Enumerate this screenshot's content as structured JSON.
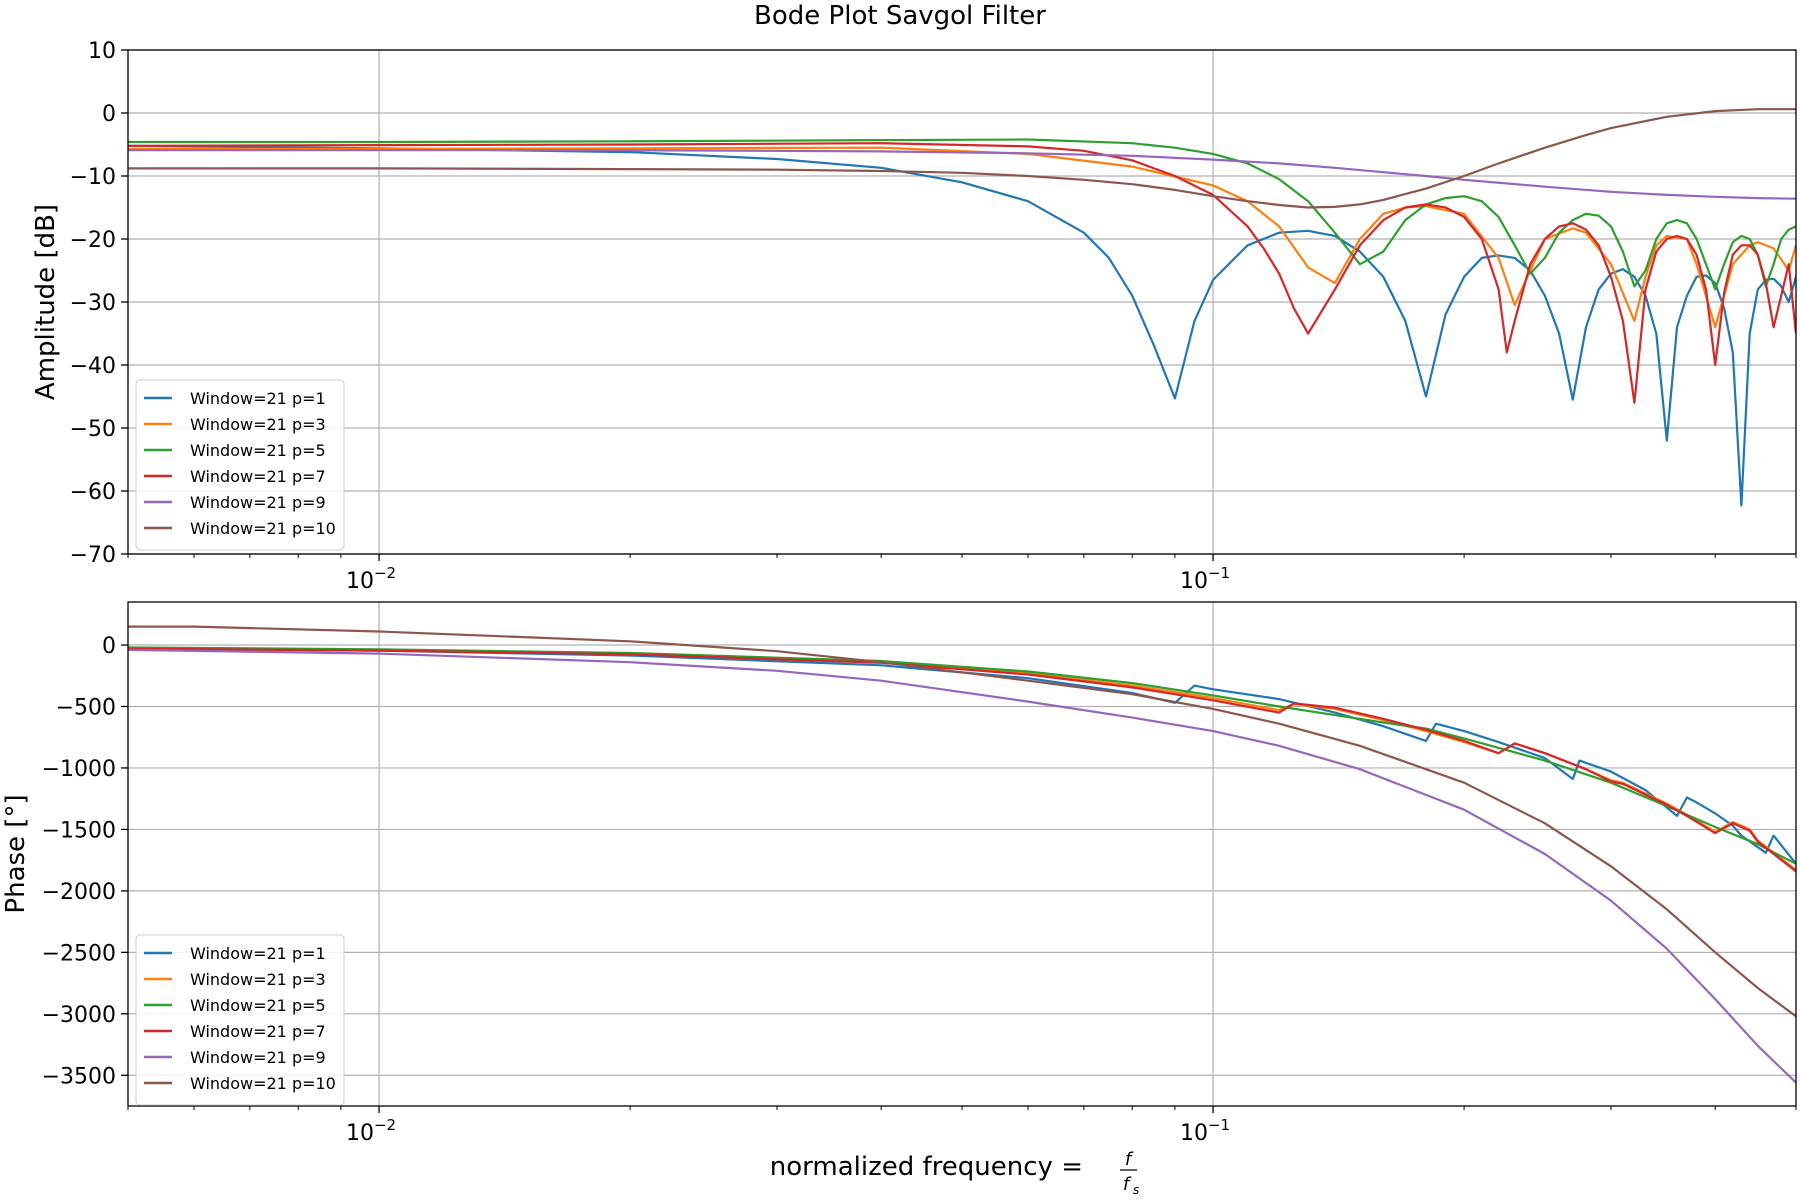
{
  "figure": {
    "title": "Bode Plot Savgol Filter",
    "xlabel_prefix": "normalized frequency = ",
    "xlabel_frac_num": "f",
    "xlabel_frac_den": "f",
    "xlabel_frac_den_sub": "s"
  },
  "chart_data": [
    {
      "type": "line",
      "title": "Bode Plot Savgol Filter",
      "xlabel": "",
      "ylabel": "Amplitude [dB]",
      "xscale": "log",
      "xlim": [
        0.005,
        0.5
      ],
      "ylim": [
        -70,
        10
      ],
      "xticks": [
        {
          "value": 0.01,
          "base": "10",
          "exp": "−2"
        },
        {
          "value": 0.1,
          "base": "10",
          "exp": "−1"
        }
      ],
      "yticks": [
        10,
        0,
        -10,
        -20,
        -30,
        -40,
        -50,
        -60,
        -70
      ],
      "ytick_labels": [
        "10",
        "0",
        "−10",
        "−20",
        "−30",
        "−40",
        "−50",
        "−60",
        "−70"
      ],
      "grid": true,
      "legend_position": "lower-left",
      "series": [
        {
          "name": "Window=21 p=1",
          "color": "#1f77b4",
          "x": [
            0.005,
            0.01,
            0.02,
            0.03,
            0.04,
            0.05,
            0.06,
            0.07,
            0.075,
            0.08,
            0.085,
            0.09,
            0.095,
            0.1,
            0.11,
            0.12,
            0.13,
            0.14,
            0.15,
            0.16,
            0.17,
            0.18,
            0.19,
            0.2,
            0.21,
            0.22,
            0.23,
            0.24,
            0.25,
            0.26,
            0.27,
            0.28,
            0.29,
            0.3,
            0.31,
            0.32,
            0.33,
            0.34,
            0.35,
            0.36,
            0.37,
            0.38,
            0.39,
            0.4,
            0.41,
            0.42,
            0.43,
            0.44,
            0.45,
            0.46,
            0.47,
            0.48,
            0.49,
            0.5
          ],
          "y": [
            -5.2,
            -5.6,
            -6.2,
            -7.3,
            -8.7,
            -11.0,
            -14.0,
            -19.0,
            -23.0,
            -29.0,
            -37.0,
            -45.3,
            -33.0,
            -26.5,
            -21.0,
            -19.0,
            -18.7,
            -19.5,
            -22.0,
            -26.0,
            -33.0,
            -45.0,
            -32.0,
            -26.0,
            -23.0,
            -22.6,
            -23.0,
            -25.0,
            -29.0,
            -35.0,
            -45.5,
            -34.0,
            -28.0,
            -25.5,
            -24.8,
            -26.0,
            -29.0,
            -35.0,
            -52.0,
            -34.0,
            -29.0,
            -26.0,
            -25.8,
            -27.0,
            -31.0,
            -38.0,
            -62.3,
            -35.0,
            -28.0,
            -26.5,
            -26.3,
            -27.5,
            -30.0,
            -26.0
          ]
        },
        {
          "name": "Window=21 p=3",
          "color": "#ff7f0e",
          "x": [
            0.005,
            0.01,
            0.02,
            0.04,
            0.06,
            0.08,
            0.1,
            0.11,
            0.12,
            0.13,
            0.14,
            0.15,
            0.16,
            0.17,
            0.18,
            0.2,
            0.22,
            0.23,
            0.24,
            0.25,
            0.27,
            0.28,
            0.3,
            0.32,
            0.33,
            0.34,
            0.35,
            0.37,
            0.38,
            0.4,
            0.42,
            0.44,
            0.45,
            0.47,
            0.49,
            0.5
          ],
          "y": [
            -5.7,
            -5.7,
            -5.6,
            -5.5,
            -6.5,
            -8.5,
            -11.5,
            -14.0,
            -18.0,
            -24.5,
            -27.0,
            -20.0,
            -16.0,
            -15.0,
            -14.8,
            -16.0,
            -23.0,
            -30.5,
            -25.0,
            -20.0,
            -18.3,
            -19.0,
            -24.0,
            -33.0,
            -26.0,
            -21.0,
            -19.5,
            -20.0,
            -24.0,
            -34.0,
            -24.0,
            -21.0,
            -20.5,
            -21.5,
            -25.0,
            -21.0
          ]
        },
        {
          "name": "Window=21 p=5",
          "color": "#2ca02c",
          "x": [
            0.005,
            0.01,
            0.02,
            0.04,
            0.06,
            0.08,
            0.09,
            0.1,
            0.11,
            0.12,
            0.13,
            0.14,
            0.15,
            0.16,
            0.17,
            0.18,
            0.19,
            0.2,
            0.21,
            0.22,
            0.23,
            0.24,
            0.25,
            0.26,
            0.27,
            0.28,
            0.29,
            0.3,
            0.31,
            0.32,
            0.33,
            0.34,
            0.35,
            0.36,
            0.37,
            0.38,
            0.39,
            0.4,
            0.41,
            0.42,
            0.43,
            0.44,
            0.45,
            0.46,
            0.47,
            0.48,
            0.49,
            0.5
          ],
          "y": [
            -4.6,
            -4.6,
            -4.5,
            -4.3,
            -4.2,
            -4.8,
            -5.5,
            -6.5,
            -8.0,
            -10.5,
            -14.0,
            -19.0,
            -24.0,
            -22.0,
            -17.0,
            -14.5,
            -13.5,
            -13.2,
            -14.0,
            -16.5,
            -21.0,
            -25.5,
            -23.0,
            -19.0,
            -17.0,
            -16.0,
            -16.3,
            -18.0,
            -22.0,
            -27.5,
            -25.0,
            -20.0,
            -17.5,
            -17.0,
            -17.5,
            -20.0,
            -24.0,
            -28.0,
            -24.0,
            -20.5,
            -19.5,
            -20.0,
            -22.5,
            -27.5,
            -24.0,
            -20.0,
            -18.5,
            -18.0
          ]
        },
        {
          "name": "Window=21 p=7",
          "color": "#d62728",
          "x": [
            0.005,
            0.01,
            0.02,
            0.04,
            0.06,
            0.07,
            0.08,
            0.09,
            0.1,
            0.11,
            0.115,
            0.12,
            0.125,
            0.13,
            0.14,
            0.15,
            0.16,
            0.17,
            0.18,
            0.19,
            0.2,
            0.21,
            0.22,
            0.225,
            0.23,
            0.24,
            0.25,
            0.26,
            0.27,
            0.28,
            0.29,
            0.3,
            0.31,
            0.32,
            0.33,
            0.34,
            0.35,
            0.36,
            0.37,
            0.38,
            0.39,
            0.4,
            0.41,
            0.42,
            0.43,
            0.44,
            0.45,
            0.46,
            0.47,
            0.48,
            0.49,
            0.5
          ],
          "y": [
            -5.2,
            -5.1,
            -5.0,
            -4.8,
            -5.3,
            -6.0,
            -7.5,
            -10.0,
            -13.0,
            -18.0,
            -21.5,
            -25.5,
            -31.0,
            -35.0,
            -28.0,
            -21.0,
            -17.0,
            -15.0,
            -14.5,
            -15.0,
            -16.5,
            -20.0,
            -28.0,
            -38.0,
            -33.0,
            -24.0,
            -20.0,
            -18.0,
            -17.5,
            -18.5,
            -21.0,
            -26.0,
            -33.0,
            -46.0,
            -28.0,
            -22.0,
            -20.0,
            -19.5,
            -20.0,
            -22.5,
            -28.0,
            -40.0,
            -28.5,
            -22.5,
            -21.0,
            -21.0,
            -22.5,
            -27.0,
            -34.0,
            -29.0,
            -24.0,
            -35.0
          ]
        },
        {
          "name": "Window=21 p=9",
          "color": "#9467bd",
          "x": [
            0.005,
            0.01,
            0.02,
            0.04,
            0.06,
            0.08,
            0.1,
            0.12,
            0.14,
            0.16,
            0.18,
            0.2,
            0.25,
            0.3,
            0.35,
            0.4,
            0.45,
            0.5
          ],
          "y": [
            -5.9,
            -5.9,
            -5.9,
            -6.1,
            -6.4,
            -6.8,
            -7.4,
            -8.0,
            -8.7,
            -9.4,
            -10.0,
            -10.6,
            -11.7,
            -12.5,
            -13.0,
            -13.3,
            -13.5,
            -13.6
          ]
        },
        {
          "name": "Window=21 p=10",
          "color": "#8c564b",
          "x": [
            0.005,
            0.01,
            0.02,
            0.03,
            0.04,
            0.05,
            0.06,
            0.07,
            0.08,
            0.09,
            0.1,
            0.11,
            0.12,
            0.13,
            0.14,
            0.15,
            0.16,
            0.18,
            0.2,
            0.22,
            0.25,
            0.28,
            0.3,
            0.35,
            0.4,
            0.45,
            0.5
          ],
          "y": [
            -8.8,
            -8.8,
            -8.9,
            -9.0,
            -9.2,
            -9.5,
            -10.0,
            -10.6,
            -11.3,
            -12.2,
            -13.2,
            -14.0,
            -14.6,
            -15.0,
            -14.9,
            -14.5,
            -13.8,
            -12.0,
            -10.0,
            -8.0,
            -5.5,
            -3.5,
            -2.4,
            -0.6,
            0.3,
            0.6,
            0.6
          ]
        }
      ]
    },
    {
      "type": "line",
      "title": "",
      "xlabel": "normalized frequency = f/fs",
      "ylabel": "Phase [°]",
      "xscale": "log",
      "xlim": [
        0.005,
        0.5
      ],
      "ylim": [
        -3750,
        350
      ],
      "xticks": [
        {
          "value": 0.01,
          "base": "10",
          "exp": "−2"
        },
        {
          "value": 0.1,
          "base": "10",
          "exp": "−1"
        }
      ],
      "yticks": [
        0,
        -500,
        -1000,
        -1500,
        -2000,
        -2500,
        -3000,
        -3500
      ],
      "ytick_labels": [
        "0",
        "−500",
        "−1000",
        "−1500",
        "−2000",
        "−2500",
        "−3000",
        "−3500"
      ],
      "grid": true,
      "legend_position": "lower-left",
      "series": [
        {
          "name": "Window=21 p=1",
          "color": "#1f77b4",
          "x": [
            0.005,
            0.01,
            0.02,
            0.04,
            0.06,
            0.08,
            0.09,
            0.095,
            0.1,
            0.12,
            0.14,
            0.16,
            0.18,
            0.185,
            0.2,
            0.22,
            0.25,
            0.27,
            0.275,
            0.3,
            0.33,
            0.36,
            0.37,
            0.38,
            0.4,
            0.42,
            0.43,
            0.46,
            0.47,
            0.5
          ],
          "y": [
            -30,
            -45,
            -85,
            -165,
            -270,
            -390,
            -470,
            -330,
            -360,
            -440,
            -550,
            -660,
            -780,
            -640,
            -700,
            -790,
            -920,
            -1090,
            -940,
            -1030,
            -1180,
            -1390,
            -1240,
            -1280,
            -1370,
            -1470,
            -1550,
            -1690,
            -1550,
            -1780
          ]
        },
        {
          "name": "Window=21 p=3",
          "color": "#ff7f0e",
          "x": [
            0.005,
            0.01,
            0.02,
            0.04,
            0.06,
            0.08,
            0.1,
            0.12,
            0.125,
            0.14,
            0.16,
            0.18,
            0.2,
            0.22,
            0.23,
            0.25,
            0.28,
            0.3,
            0.31,
            0.35,
            0.37,
            0.4,
            0.42,
            0.44,
            0.45,
            0.5
          ],
          "y": [
            -25,
            -40,
            -70,
            -140,
            -230,
            -330,
            -430,
            -530,
            -480,
            -520,
            -610,
            -700,
            -790,
            -880,
            -800,
            -880,
            -1010,
            -1100,
            -1120,
            -1290,
            -1380,
            -1520,
            -1440,
            -1500,
            -1590,
            -1830
          ]
        },
        {
          "name": "Window=21 p=5",
          "color": "#2ca02c",
          "x": [
            0.005,
            0.01,
            0.02,
            0.04,
            0.06,
            0.08,
            0.1,
            0.12,
            0.14,
            0.16,
            0.18,
            0.2,
            0.25,
            0.3,
            0.35,
            0.4,
            0.45,
            0.5
          ],
          "y": [
            -20,
            -35,
            -65,
            -130,
            -215,
            -310,
            -410,
            -500,
            -570,
            -630,
            -680,
            -760,
            -940,
            -1120,
            -1310,
            -1480,
            -1620,
            -1780
          ]
        },
        {
          "name": "Window=21 p=7",
          "color": "#d62728",
          "x": [
            0.005,
            0.01,
            0.02,
            0.04,
            0.06,
            0.08,
            0.1,
            0.12,
            0.125,
            0.14,
            0.16,
            0.18,
            0.2,
            0.22,
            0.23,
            0.25,
            0.28,
            0.3,
            0.31,
            0.35,
            0.37,
            0.4,
            0.42,
            0.44,
            0.45,
            0.5
          ],
          "y": [
            -30,
            -45,
            -75,
            -145,
            -240,
            -345,
            -450,
            -550,
            -475,
            -510,
            -600,
            -690,
            -780,
            -880,
            -800,
            -880,
            -1010,
            -1110,
            -1130,
            -1300,
            -1390,
            -1530,
            -1450,
            -1510,
            -1600,
            -1840
          ]
        },
        {
          "name": "Window=21 p=9",
          "color": "#9467bd",
          "x": [
            0.005,
            0.01,
            0.02,
            0.03,
            0.04,
            0.06,
            0.08,
            0.1,
            0.12,
            0.15,
            0.2,
            0.25,
            0.3,
            0.35,
            0.4,
            0.45,
            0.5
          ],
          "y": [
            -40,
            -70,
            -140,
            -210,
            -290,
            -460,
            -590,
            -700,
            -820,
            -1010,
            -1340,
            -1700,
            -2080,
            -2470,
            -2880,
            -3260,
            -3560
          ]
        },
        {
          "name": "Window=21 p=10",
          "color": "#8c564b",
          "x": [
            0.005,
            0.006,
            0.01,
            0.02,
            0.03,
            0.04,
            0.06,
            0.08,
            0.1,
            0.12,
            0.15,
            0.2,
            0.25,
            0.3,
            0.35,
            0.4,
            0.45,
            0.5
          ],
          "y": [
            150,
            150,
            110,
            30,
            -50,
            -140,
            -290,
            -400,
            -520,
            -640,
            -820,
            -1120,
            -1450,
            -1800,
            -2150,
            -2500,
            -2790,
            -3020
          ]
        }
      ]
    }
  ]
}
